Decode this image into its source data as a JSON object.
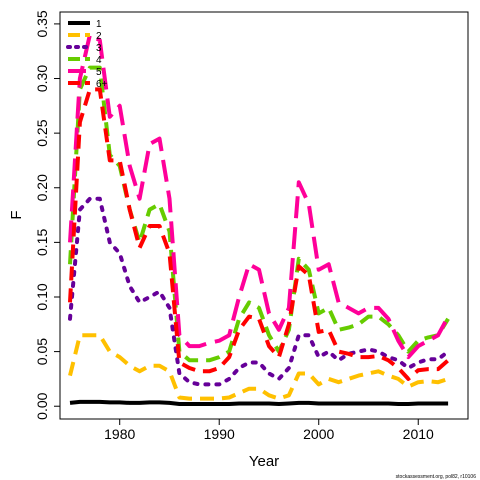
{
  "chart_data": {
    "type": "line",
    "xlabel": "Year",
    "ylabel": "F",
    "xlim": [
      1974,
      2015
    ],
    "ylim": [
      0,
      0.35
    ],
    "x_ticks": [
      1980,
      1990,
      2000,
      2010
    ],
    "y_ticks": [
      0.0,
      0.05,
      0.1,
      0.15,
      0.2,
      0.25,
      0.3,
      0.35
    ],
    "y_tick_labels": [
      "0.00",
      "0.05",
      "0.10",
      "0.15",
      "0.20",
      "0.25",
      "0.30",
      "0.35"
    ],
    "legend_position": "top-left",
    "x": [
      1975,
      1976,
      1977,
      1978,
      1979,
      1980,
      1981,
      1982,
      1983,
      1984,
      1985,
      1986,
      1987,
      1988,
      1989,
      1990,
      1991,
      1992,
      1993,
      1994,
      1995,
      1996,
      1997,
      1998,
      1999,
      2000,
      2001,
      2002,
      2003,
      2004,
      2005,
      2006,
      2007,
      2008,
      2009,
      2010,
      2011,
      2012,
      2013
    ],
    "series": [
      {
        "name": "1",
        "color": "#000000",
        "dash": "solid",
        "values": [
          0.003,
          0.004,
          0.004,
          0.004,
          0.0035,
          0.0035,
          0.003,
          0.003,
          0.0035,
          0.0035,
          0.003,
          0.002,
          0.002,
          0.002,
          0.002,
          0.002,
          0.002,
          0.0025,
          0.0025,
          0.0025,
          0.0025,
          0.002,
          0.0025,
          0.003,
          0.003,
          0.0025,
          0.0025,
          0.0025,
          0.0025,
          0.0025,
          0.0025,
          0.0025,
          0.0025,
          0.002,
          0.002,
          0.0025,
          0.0025,
          0.0025,
          0.0025
        ]
      },
      {
        "name": "2",
        "color": "#FFC000",
        "dash": "dashed",
        "values": [
          0.028,
          0.065,
          0.065,
          0.065,
          0.05,
          0.045,
          0.037,
          0.032,
          0.037,
          0.037,
          0.032,
          0.008,
          0.007,
          0.007,
          0.007,
          0.007,
          0.008,
          0.012,
          0.016,
          0.016,
          0.01,
          0.007,
          0.01,
          0.03,
          0.03,
          0.02,
          0.025,
          0.022,
          0.025,
          0.028,
          0.03,
          0.032,
          0.028,
          0.025,
          0.018,
          0.022,
          0.023,
          0.022,
          0.025
        ]
      },
      {
        "name": "3",
        "color": "#660099",
        "dash": "dotted",
        "values": [
          0.08,
          0.18,
          0.19,
          0.19,
          0.15,
          0.14,
          0.11,
          0.095,
          0.1,
          0.105,
          0.09,
          0.03,
          0.022,
          0.02,
          0.02,
          0.02,
          0.025,
          0.035,
          0.04,
          0.04,
          0.03,
          0.025,
          0.035,
          0.065,
          0.065,
          0.045,
          0.05,
          0.042,
          0.048,
          0.05,
          0.052,
          0.05,
          0.045,
          0.042,
          0.035,
          0.04,
          0.043,
          0.043,
          0.05
        ]
      },
      {
        "name": "4",
        "color": "#66CC00",
        "dash": "dashed",
        "values": [
          0.13,
          0.29,
          0.31,
          0.31,
          0.23,
          0.22,
          0.18,
          0.15,
          0.18,
          0.185,
          0.16,
          0.05,
          0.042,
          0.042,
          0.042,
          0.045,
          0.05,
          0.08,
          0.095,
          0.09,
          0.065,
          0.05,
          0.07,
          0.135,
          0.125,
          0.085,
          0.09,
          0.07,
          0.072,
          0.075,
          0.082,
          0.082,
          0.075,
          0.065,
          0.05,
          0.06,
          0.063,
          0.065,
          0.08
        ]
      },
      {
        "name": "5",
        "color": "#FF0099",
        "dash": "longdash",
        "values": [
          0.15,
          0.3,
          0.34,
          0.335,
          0.265,
          0.275,
          0.22,
          0.19,
          0.24,
          0.245,
          0.19,
          0.065,
          0.055,
          0.055,
          0.058,
          0.06,
          0.065,
          0.1,
          0.13,
          0.125,
          0.085,
          0.07,
          0.09,
          0.205,
          0.185,
          0.125,
          0.13,
          0.095,
          0.09,
          0.085,
          0.09,
          0.09,
          0.08,
          0.06,
          0.045,
          0.055,
          0.06,
          0.065,
          0.082
        ]
      },
      {
        "name": "6+",
        "color": "#FF0000",
        "dash": "dashed",
        "values": [
          0.095,
          0.26,
          0.29,
          0.29,
          0.225,
          0.225,
          0.18,
          0.145,
          0.165,
          0.165,
          0.14,
          0.04,
          0.035,
          0.032,
          0.032,
          0.035,
          0.045,
          0.07,
          0.082,
          0.08,
          0.055,
          0.045,
          0.075,
          0.128,
          0.12,
          0.068,
          0.07,
          0.05,
          0.048,
          0.045,
          0.045,
          0.046,
          0.042,
          0.035,
          0.025,
          0.033,
          0.034,
          0.034,
          0.042
        ]
      }
    ]
  },
  "footnote": "stockassessment.org, pol82, r10106"
}
